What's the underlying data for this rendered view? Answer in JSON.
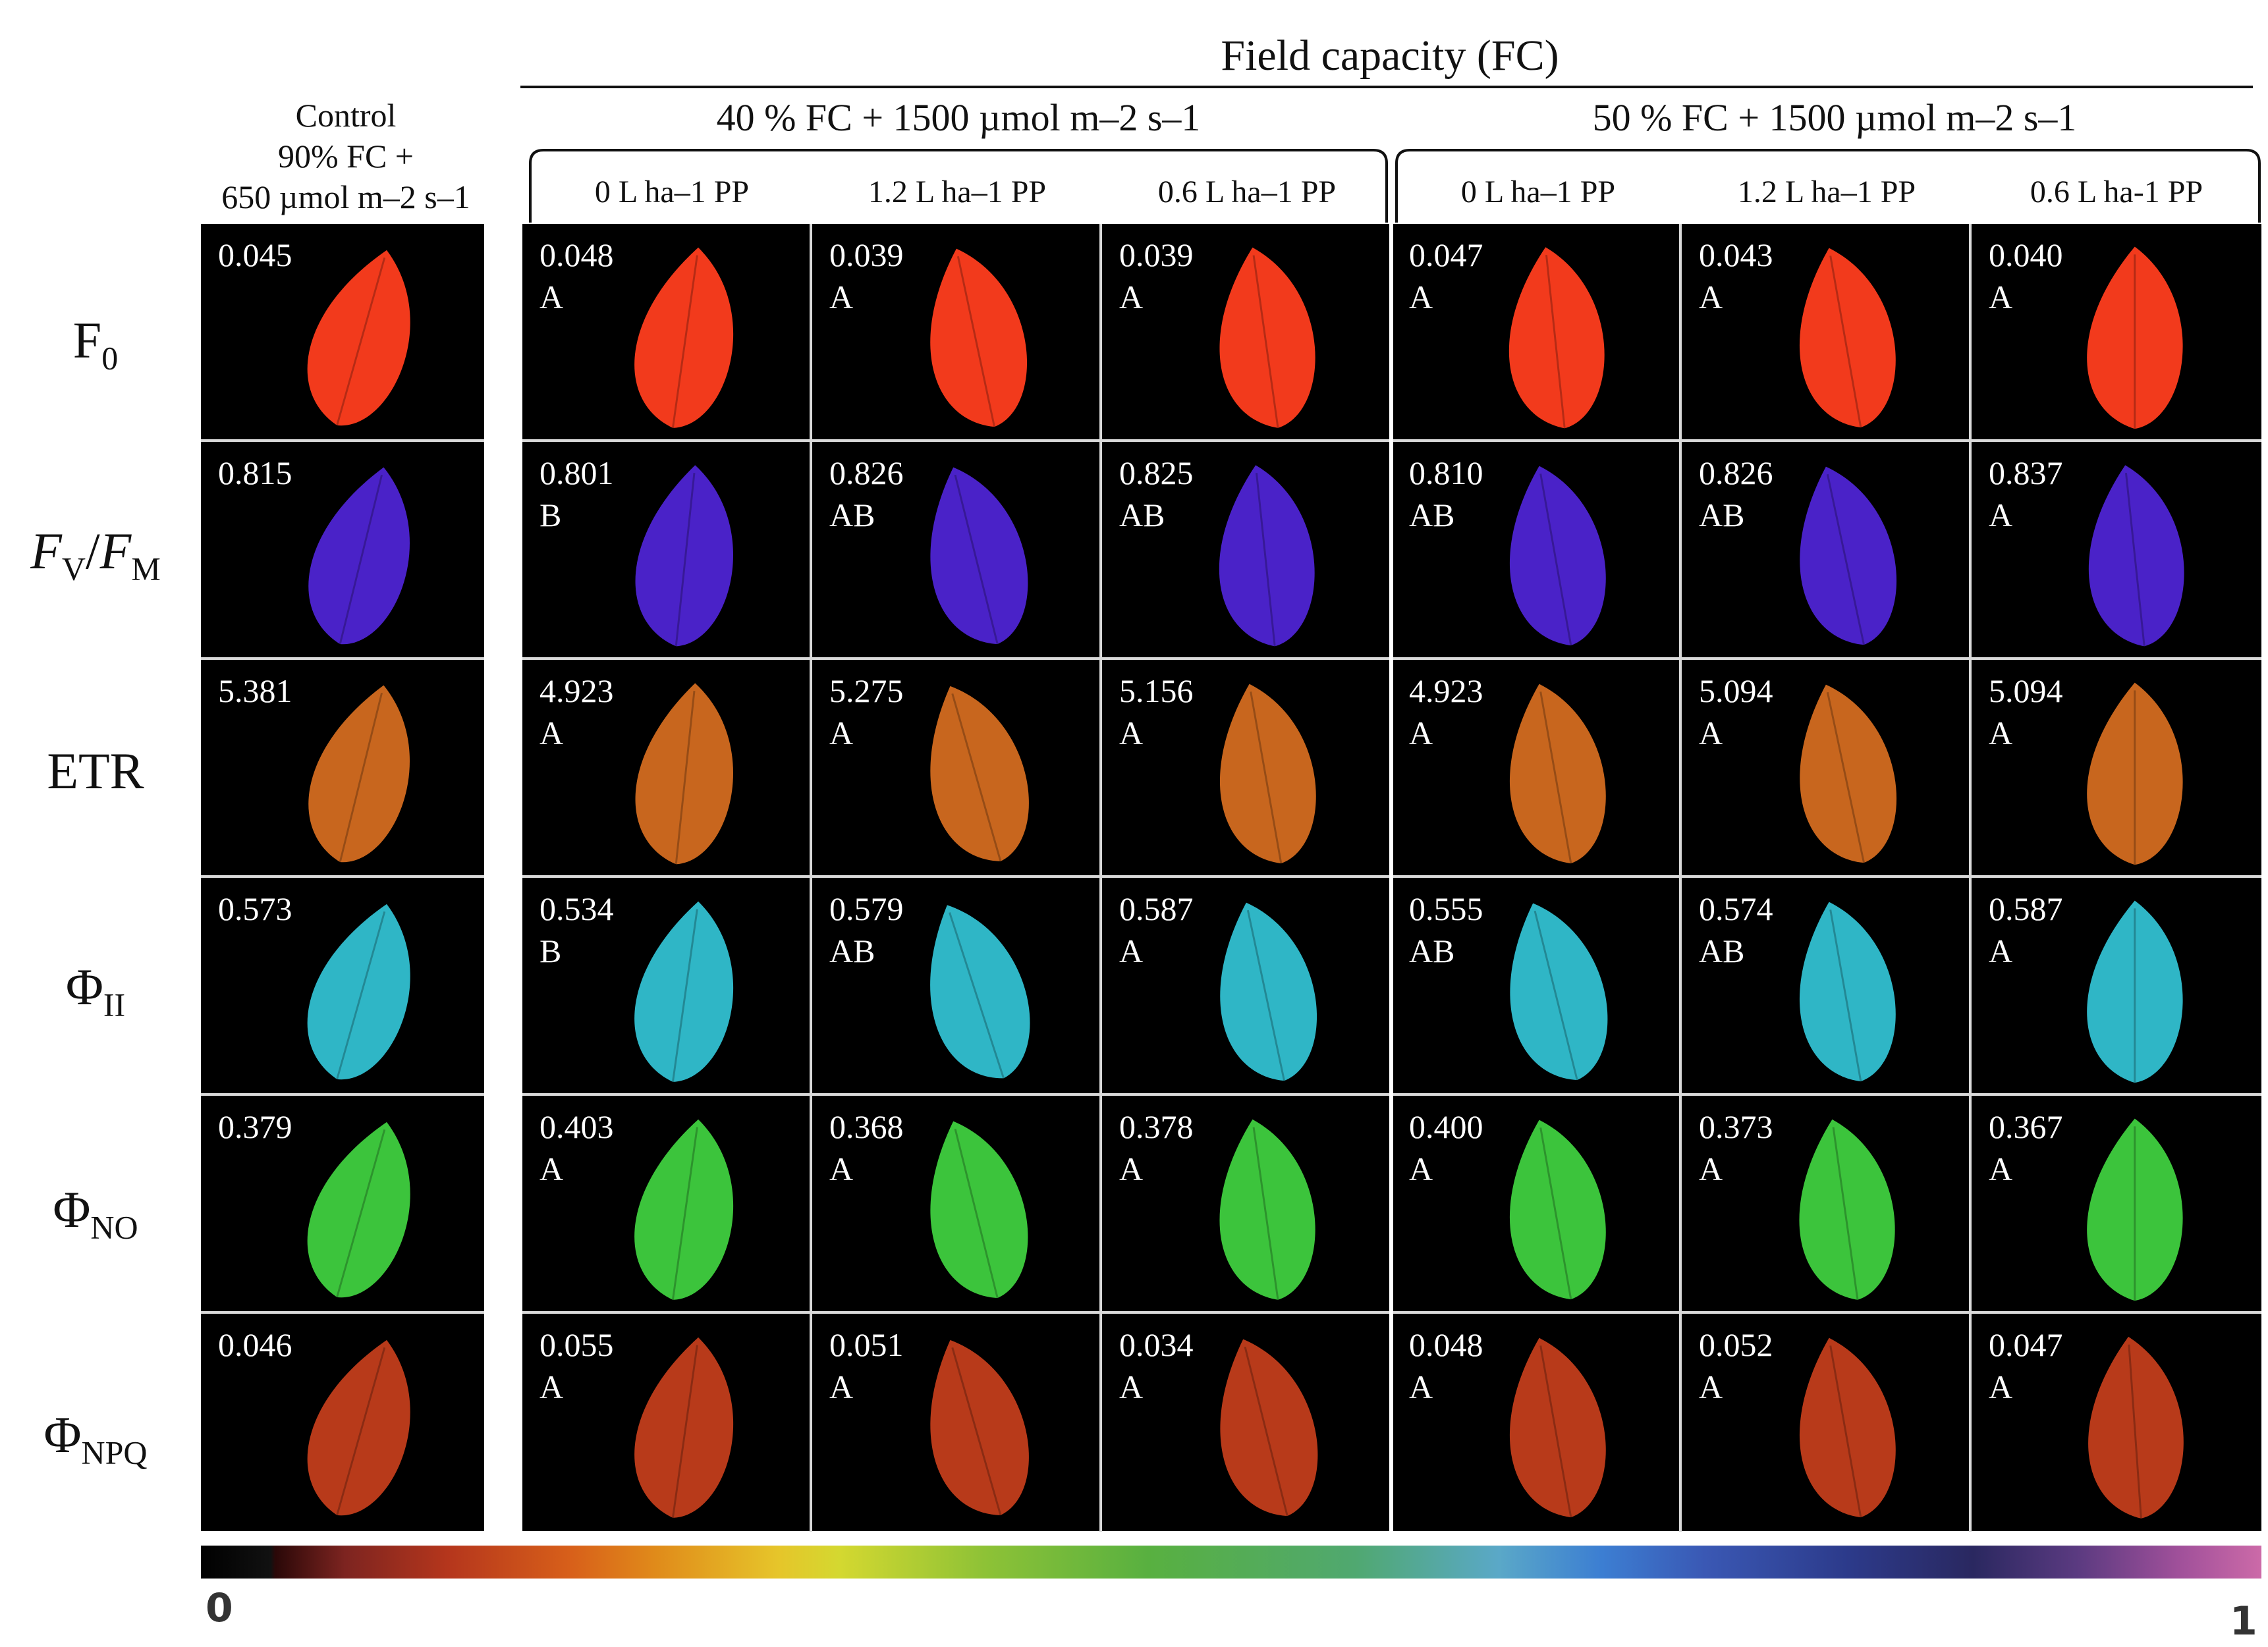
{
  "header": {
    "super_title": "Field capacity (FC)",
    "group1_title": "40 % FC + 1500 µmol m–2 s–1",
    "group2_title": "50 % FC + 1500 µmol m–2 s–1",
    "control_line1": "Control",
    "control_line2": "90% FC +",
    "control_line3": "650 µmol m–2 s–1"
  },
  "columns": [
    {
      "label": "0 L ha–1 PP"
    },
    {
      "label": "1.2 L ha–1 PP"
    },
    {
      "label": "0.6 L ha–1 PP"
    },
    {
      "label": "0 L ha–1 PP"
    },
    {
      "label": "1.2 L ha–1 PP"
    },
    {
      "label": "0.6 L ha-1 PP"
    }
  ],
  "rows": [
    {
      "label_main": "F",
      "label_sub": "0",
      "color": "#f23a1c",
      "control": "0.045",
      "cells": [
        {
          "v": "0.048",
          "s": "A"
        },
        {
          "v": "0.039",
          "s": "A"
        },
        {
          "v": "0.039",
          "s": "A"
        },
        {
          "v": "0.047",
          "s": "A"
        },
        {
          "v": "0.043",
          "s": "A"
        },
        {
          "v": "0.040",
          "s": "A"
        }
      ]
    },
    {
      "label_main": "FV/FM",
      "label_sub": "",
      "color": "#4a22c8",
      "control": "0.815",
      "cells": [
        {
          "v": "0.801",
          "s": "B"
        },
        {
          "v": "0.826",
          "s": "AB"
        },
        {
          "v": "0.825",
          "s": "AB"
        },
        {
          "v": "0.810",
          "s": "AB"
        },
        {
          "v": "0.826",
          "s": "AB"
        },
        {
          "v": "0.837",
          "s": "A"
        }
      ]
    },
    {
      "label_main": "ETR",
      "label_sub": "",
      "color": "#c8661e",
      "control": "5.381",
      "cells": [
        {
          "v": "4.923",
          "s": "A"
        },
        {
          "v": "5.275",
          "s": "A"
        },
        {
          "v": "5.156",
          "s": "A"
        },
        {
          "v": "4.923",
          "s": "A"
        },
        {
          "v": "5.094",
          "s": "A"
        },
        {
          "v": "5.094",
          "s": "A"
        }
      ]
    },
    {
      "label_main": "Φ",
      "label_sub": "II",
      "color": "#2fb6c6",
      "control": "0.573",
      "cells": [
        {
          "v": "0.534",
          "s": "B"
        },
        {
          "v": "0.579",
          "s": "AB"
        },
        {
          "v": "0.587",
          "s": "A"
        },
        {
          "v": "0.555",
          "s": "AB"
        },
        {
          "v": "0.574",
          "s": "AB"
        },
        {
          "v": "0.587",
          "s": "A"
        }
      ]
    },
    {
      "label_main": "Φ",
      "label_sub": "NO",
      "color": "#3cc43c",
      "control": "0.379",
      "cells": [
        {
          "v": "0.403",
          "s": "A"
        },
        {
          "v": "0.368",
          "s": "A"
        },
        {
          "v": "0.378",
          "s": "A"
        },
        {
          "v": "0.400",
          "s": "A"
        },
        {
          "v": "0.373",
          "s": "A"
        },
        {
          "v": "0.367",
          "s": "A"
        }
      ]
    },
    {
      "label_main": "Φ",
      "label_sub": "NPQ",
      "color": "#b83a1a",
      "control": "0.046",
      "cells": [
        {
          "v": "0.055",
          "s": "A"
        },
        {
          "v": "0.051",
          "s": "A"
        },
        {
          "v": "0.034",
          "s": "A"
        },
        {
          "v": "0.048",
          "s": "A"
        },
        {
          "v": "0.052",
          "s": "A"
        },
        {
          "v": "0.047",
          "s": "A"
        }
      ]
    }
  ],
  "colorbar": {
    "min_label": "0",
    "max_label": "1"
  }
}
